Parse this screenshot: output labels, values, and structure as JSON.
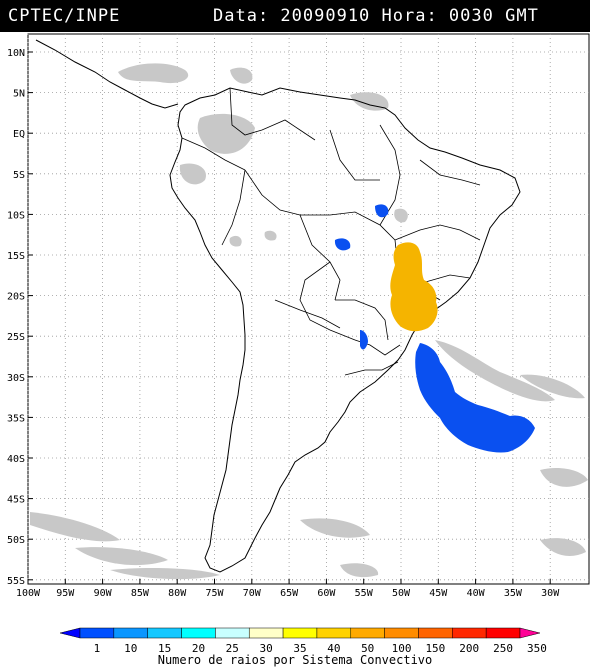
{
  "header": {
    "source": "CPTEC/INPE",
    "datetime": "Data: 20090910 Hora: 0030 GMT"
  },
  "map": {
    "lat_labels": [
      "10N",
      "5N",
      "EQ",
      "5S",
      "10S",
      "15S",
      "20S",
      "25S",
      "30S",
      "35S",
      "40S",
      "45S",
      "50S",
      "55S"
    ],
    "lon_labels": [
      "100W",
      "95W",
      "90W",
      "85W",
      "80W",
      "75W",
      "70W",
      "65W",
      "60W",
      "55W",
      "50W",
      "45W",
      "40W",
      "35W",
      "30W"
    ]
  },
  "legend": {
    "title": "Numero de raios por Sistema Convectivo",
    "ticks": [
      "1",
      "10",
      "15",
      "20",
      "25",
      "30",
      "35",
      "40",
      "50",
      "100",
      "150",
      "200",
      "250",
      "350"
    ],
    "colors": [
      "#0000ff",
      "#0050ff",
      "#0a96ff",
      "#14c8ff",
      "#00ffff",
      "#c8ffff",
      "#ffffc8",
      "#ffff00",
      "#ffd200",
      "#ffaa00",
      "#ff8c00",
      "#ff6400",
      "#ff2800",
      "#ff0000",
      "#ff0096"
    ]
  },
  "colors": {
    "cloud_gray": "#c8c8c8",
    "system_blue": "#0a50f0",
    "system_orange": "#f5b400",
    "grid": "#999999"
  }
}
